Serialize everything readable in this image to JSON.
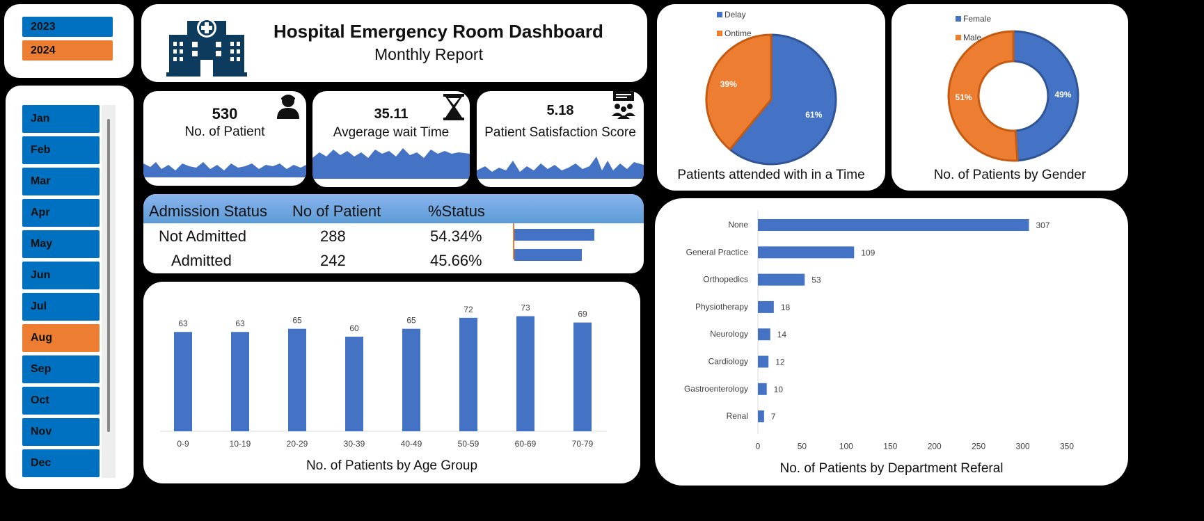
{
  "dashboard": {
    "title": "Hospital Emergency Room Dashboard",
    "subtitle": "Monthly Report"
  },
  "years": [
    {
      "label": "2023",
      "selected": false
    },
    {
      "label": "2024",
      "selected": true
    }
  ],
  "months": [
    {
      "label": "Jan",
      "selected": false
    },
    {
      "label": "Feb",
      "selected": false
    },
    {
      "label": "Mar",
      "selected": false
    },
    {
      "label": "Apr",
      "selected": false
    },
    {
      "label": "May",
      "selected": false
    },
    {
      "label": "Jun",
      "selected": false
    },
    {
      "label": "Jul",
      "selected": false
    },
    {
      "label": "Aug",
      "selected": true
    },
    {
      "label": "Sep",
      "selected": false
    },
    {
      "label": "Oct",
      "selected": false
    },
    {
      "label": "Nov",
      "selected": false
    },
    {
      "label": "Dec",
      "selected": false
    }
  ],
  "kpis": {
    "patients": {
      "value": "530",
      "label": "No. of Patient",
      "icon": "patient-icon"
    },
    "wait": {
      "value": "35.11",
      "label": "Avgerage wait Time",
      "icon": "hourglass-icon"
    },
    "satisfaction": {
      "value": "5.18",
      "label": "Patient Satisfaction Score",
      "icon": "audience-icon"
    }
  },
  "admission": {
    "headers": [
      "Admission Status",
      "No of Patient",
      "%Status"
    ],
    "rows": [
      {
        "status": "Not Admitted",
        "count": "288",
        "pct": "54.34%",
        "share": 0.5434
      },
      {
        "status": "Admitted",
        "count": "242",
        "pct": "45.66%",
        "share": 0.4566
      }
    ]
  },
  "colors": {
    "blue": "#4472c4",
    "orange": "#ed7d31",
    "slicer_blue": "#0070c0",
    "icon_navy": "#0d3b5e"
  },
  "chart_data": [
    {
      "type": "pie",
      "title": "Patients attended with in a Time",
      "legend": "top-left",
      "slices": [
        {
          "name": "Delay",
          "value": 61,
          "label": "61%"
        },
        {
          "name": "Ontime",
          "value": 39,
          "label": "39%"
        }
      ]
    },
    {
      "type": "pie",
      "donut": true,
      "title": "No. of Patients by Gender",
      "legend": "top-left",
      "slices": [
        {
          "name": "Female",
          "value": 49,
          "label": "49%"
        },
        {
          "name": "Male",
          "value": 51,
          "label": "51%"
        }
      ]
    },
    {
      "type": "bar",
      "title": "No. of Patients by Age Group",
      "categories": [
        "0-9",
        "10-19",
        "20-29",
        "30-39",
        "40-49",
        "50-59",
        "60-69",
        "70-79"
      ],
      "values": [
        63,
        63,
        65,
        60,
        65,
        72,
        73,
        69
      ],
      "ylim": [
        0,
        80
      ]
    },
    {
      "type": "bar",
      "orientation": "horizontal",
      "title": "No. of Patients by Department Referal",
      "categories": [
        "None",
        "General Practice",
        "Orthopedics",
        "Physiotherapy",
        "Neurology",
        "Cardiology",
        "Gastroenterology",
        "Renal"
      ],
      "values": [
        307,
        109,
        53,
        18,
        14,
        12,
        10,
        7
      ],
      "xlim": [
        0,
        350
      ],
      "xticks": [
        "0",
        "50",
        "100",
        "150",
        "200",
        "250",
        "300",
        "350"
      ]
    }
  ]
}
